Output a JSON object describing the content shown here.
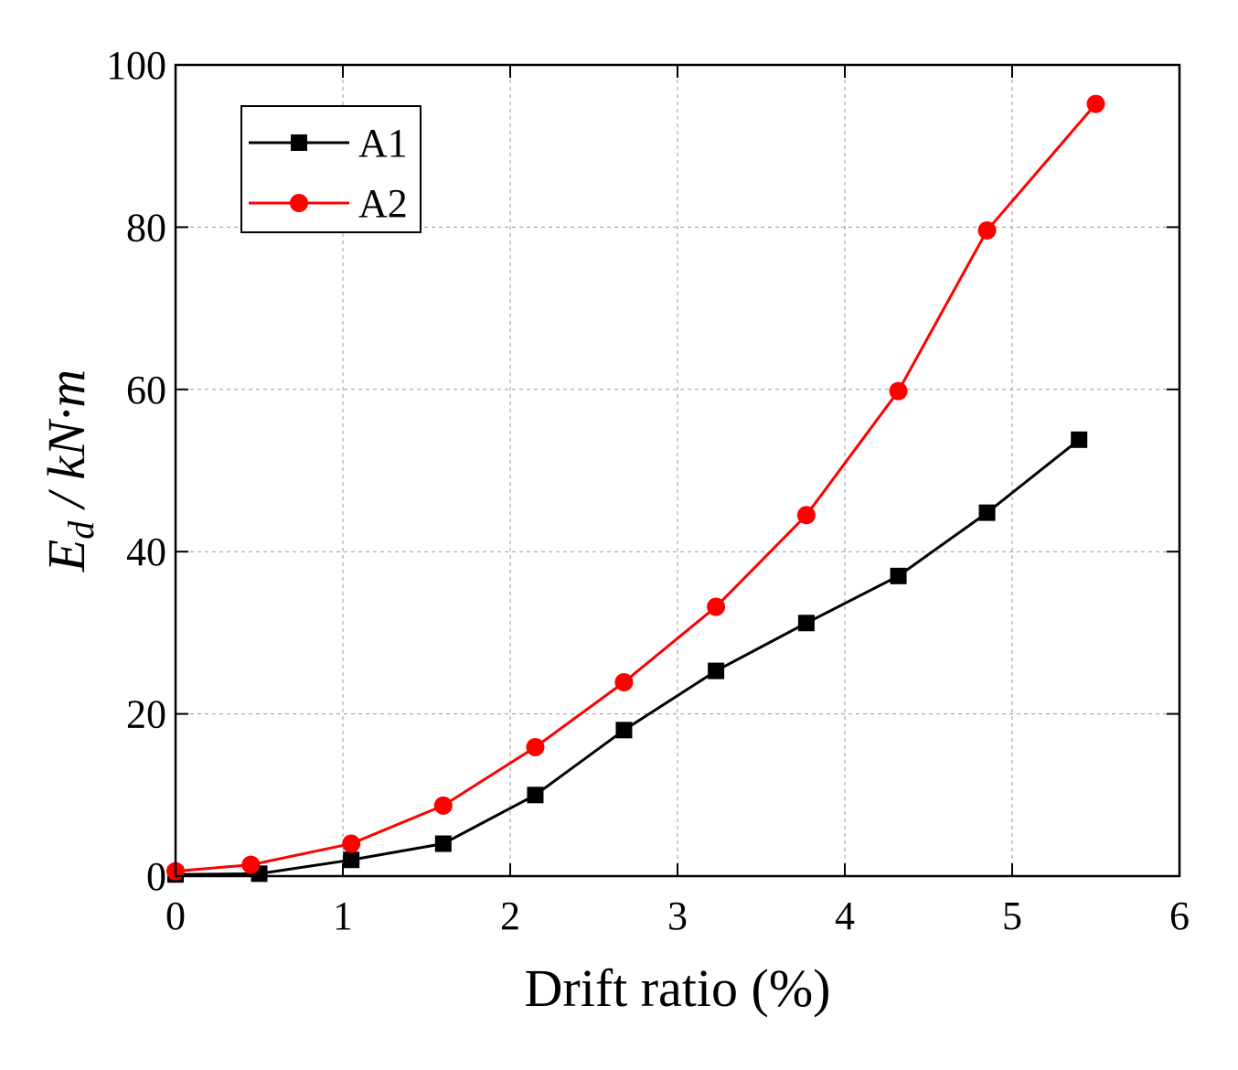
{
  "chart_data": {
    "type": "line",
    "xlabel": "Drift ratio (%)",
    "ylabel": {
      "main": "E",
      "sub": "d",
      "unit": " / kN·m"
    },
    "xlim": [
      0,
      6
    ],
    "ylim": [
      0,
      100
    ],
    "xticks": [
      0,
      1,
      2,
      3,
      4,
      5,
      6
    ],
    "yticks": [
      0,
      20,
      40,
      60,
      80,
      100
    ],
    "grid": true,
    "legend_position": "top-left",
    "series": [
      {
        "name": "A1",
        "color": "#000000",
        "marker": "square",
        "x": [
          0.0,
          0.5,
          1.05,
          1.6,
          2.15,
          2.68,
          3.23,
          3.77,
          4.32,
          4.85,
          5.4
        ],
        "y": [
          0.2,
          0.3,
          2.0,
          4.0,
          10.0,
          18.0,
          25.3,
          31.2,
          37.0,
          44.8,
          53.8
        ]
      },
      {
        "name": "A2",
        "color": "#ff0000",
        "marker": "circle",
        "x": [
          0.0,
          0.45,
          1.05,
          1.6,
          2.15,
          2.68,
          3.23,
          3.77,
          4.32,
          4.85,
          5.5
        ],
        "y": [
          0.6,
          1.4,
          4.0,
          8.7,
          15.9,
          23.9,
          33.2,
          44.5,
          59.8,
          79.6,
          95.2
        ]
      }
    ]
  }
}
